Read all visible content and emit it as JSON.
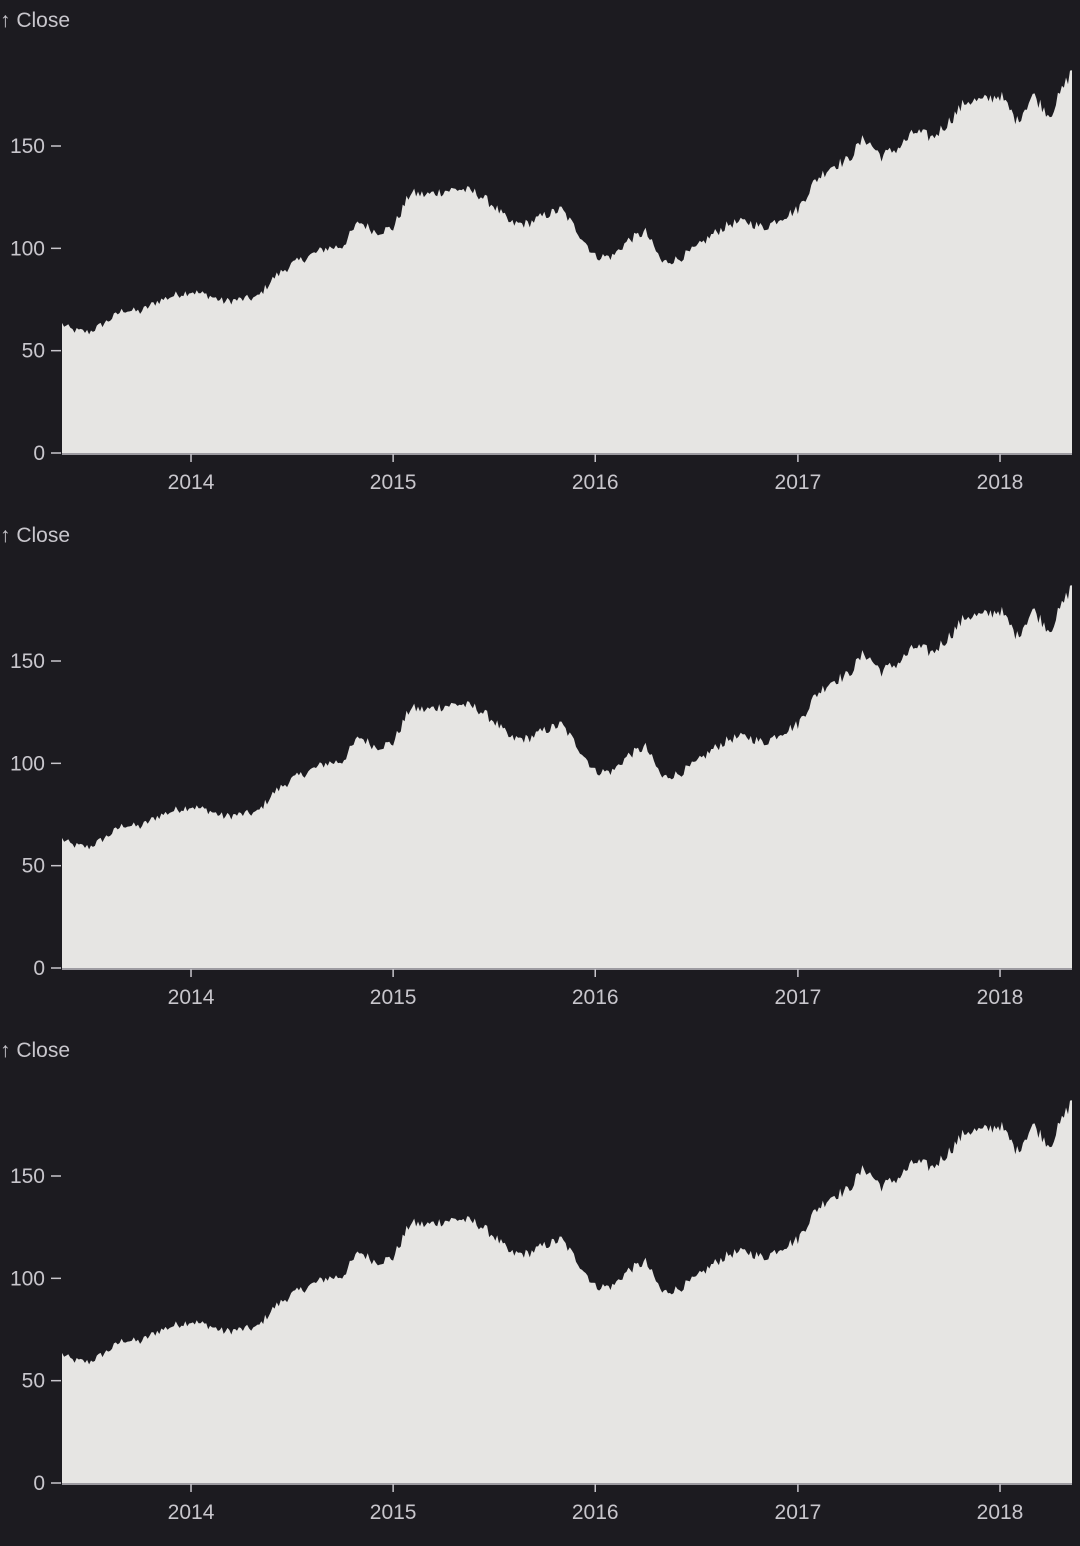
{
  "colors": {
    "background": "#1c1b20",
    "area_fill": "#e6e5e3",
    "axis": "#c8c6cc"
  },
  "chart_data": [
    {
      "type": "area",
      "ylabel": "↑ Close",
      "xlabel": "",
      "ylim": [
        0,
        193
      ],
      "xlim": [
        "2013-05-13",
        "2018-05-11"
      ],
      "y_ticks": [
        0,
        50,
        100,
        150
      ],
      "x_ticks": [
        "2014",
        "2015",
        "2016",
        "2017",
        "2018"
      ],
      "series": [
        {
          "x": [
            "2013-05-13",
            "2013-06-01",
            "2013-07-01",
            "2013-08-01",
            "2013-09-01",
            "2013-10-01",
            "2013-11-01",
            "2013-12-01",
            "2014-01-01",
            "2014-02-01",
            "2014-03-01",
            "2014-04-01",
            "2014-05-01",
            "2014-06-01",
            "2014-07-01",
            "2014-08-01",
            "2014-09-01",
            "2014-10-01",
            "2014-11-01",
            "2014-12-01",
            "2015-01-01",
            "2015-02-01",
            "2015-03-01",
            "2015-04-01",
            "2015-05-01",
            "2015-06-01",
            "2015-07-01",
            "2015-08-01",
            "2015-09-01",
            "2015-10-01",
            "2015-11-01",
            "2015-12-01",
            "2016-01-01",
            "2016-02-01",
            "2016-03-01",
            "2016-04-01",
            "2016-05-01",
            "2016-06-01",
            "2016-07-01",
            "2016-08-01",
            "2016-09-01",
            "2016-10-01",
            "2016-11-01",
            "2016-12-01",
            "2017-01-01",
            "2017-02-01",
            "2017-03-01",
            "2017-04-01",
            "2017-05-01",
            "2017-06-01",
            "2017-07-01",
            "2017-08-01",
            "2017-09-01",
            "2017-10-01",
            "2017-11-01",
            "2017-12-01",
            "2018-01-01",
            "2018-02-01",
            "2018-03-01",
            "2018-04-01",
            "2018-05-11"
          ],
          "values": [
            63,
            60,
            59,
            64,
            70,
            69,
            74,
            77,
            79,
            77,
            74,
            75,
            76,
            86,
            92,
            96,
            100,
            101,
            113,
            108,
            110,
            127,
            126,
            128,
            129,
            127,
            121,
            112,
            112,
            116,
            119,
            108,
            96,
            96,
            104,
            108,
            93,
            95,
            100,
            107,
            112,
            113,
            110,
            115,
            119,
            133,
            140,
            143,
            154,
            145,
            149,
            157,
            154,
            162,
            172,
            172,
            175,
            162,
            175,
            165,
            187
          ]
        }
      ]
    },
    {
      "type": "area",
      "ylabel": "↑ Close",
      "xlabel": "",
      "ylim": [
        0,
        193
      ],
      "xlim": [
        "2013-05-13",
        "2018-05-11"
      ],
      "y_ticks": [
        0,
        50,
        100,
        150
      ],
      "x_ticks": [
        "2014",
        "2015",
        "2016",
        "2017",
        "2018"
      ],
      "series": [
        {
          "x": [
            "2013-05-13",
            "2013-06-01",
            "2013-07-01",
            "2013-08-01",
            "2013-09-01",
            "2013-10-01",
            "2013-11-01",
            "2013-12-01",
            "2014-01-01",
            "2014-02-01",
            "2014-03-01",
            "2014-04-01",
            "2014-05-01",
            "2014-06-01",
            "2014-07-01",
            "2014-08-01",
            "2014-09-01",
            "2014-10-01",
            "2014-11-01",
            "2014-12-01",
            "2015-01-01",
            "2015-02-01",
            "2015-03-01",
            "2015-04-01",
            "2015-05-01",
            "2015-06-01",
            "2015-07-01",
            "2015-08-01",
            "2015-09-01",
            "2015-10-01",
            "2015-11-01",
            "2015-12-01",
            "2016-01-01",
            "2016-02-01",
            "2016-03-01",
            "2016-04-01",
            "2016-05-01",
            "2016-06-01",
            "2016-07-01",
            "2016-08-01",
            "2016-09-01",
            "2016-10-01",
            "2016-11-01",
            "2016-12-01",
            "2017-01-01",
            "2017-02-01",
            "2017-03-01",
            "2017-04-01",
            "2017-05-01",
            "2017-06-01",
            "2017-07-01",
            "2017-08-01",
            "2017-09-01",
            "2017-10-01",
            "2017-11-01",
            "2017-12-01",
            "2018-01-01",
            "2018-02-01",
            "2018-03-01",
            "2018-04-01",
            "2018-05-11"
          ],
          "values": [
            63,
            60,
            59,
            64,
            70,
            69,
            74,
            77,
            79,
            77,
            74,
            75,
            76,
            86,
            92,
            96,
            100,
            101,
            113,
            108,
            110,
            127,
            126,
            128,
            129,
            127,
            121,
            112,
            112,
            116,
            119,
            108,
            96,
            96,
            104,
            108,
            93,
            95,
            100,
            107,
            112,
            113,
            110,
            115,
            119,
            133,
            140,
            143,
            154,
            145,
            149,
            157,
            154,
            162,
            172,
            172,
            175,
            162,
            175,
            165,
            187
          ]
        }
      ]
    },
    {
      "type": "area",
      "ylabel": "↑ Close",
      "xlabel": "",
      "ylim": [
        0,
        193
      ],
      "xlim": [
        "2013-05-13",
        "2018-05-11"
      ],
      "y_ticks": [
        0,
        50,
        100,
        150
      ],
      "x_ticks": [
        "2014",
        "2015",
        "2016",
        "2017",
        "2018"
      ],
      "series": [
        {
          "x": [
            "2013-05-13",
            "2013-06-01",
            "2013-07-01",
            "2013-08-01",
            "2013-09-01",
            "2013-10-01",
            "2013-11-01",
            "2013-12-01",
            "2014-01-01",
            "2014-02-01",
            "2014-03-01",
            "2014-04-01",
            "2014-05-01",
            "2014-06-01",
            "2014-07-01",
            "2014-08-01",
            "2014-09-01",
            "2014-10-01",
            "2014-11-01",
            "2014-12-01",
            "2015-01-01",
            "2015-02-01",
            "2015-03-01",
            "2015-04-01",
            "2015-05-01",
            "2015-06-01",
            "2015-07-01",
            "2015-08-01",
            "2015-09-01",
            "2015-10-01",
            "2015-11-01",
            "2015-12-01",
            "2016-01-01",
            "2016-02-01",
            "2016-03-01",
            "2016-04-01",
            "2016-05-01",
            "2016-06-01",
            "2016-07-01",
            "2016-08-01",
            "2016-09-01",
            "2016-10-01",
            "2016-11-01",
            "2016-12-01",
            "2017-01-01",
            "2017-02-01",
            "2017-03-01",
            "2017-04-01",
            "2017-05-01",
            "2017-06-01",
            "2017-07-01",
            "2017-08-01",
            "2017-09-01",
            "2017-10-01",
            "2017-11-01",
            "2017-12-01",
            "2018-01-01",
            "2018-02-01",
            "2018-03-01",
            "2018-04-01",
            "2018-05-11"
          ],
          "values": [
            63,
            60,
            59,
            64,
            70,
            69,
            74,
            77,
            79,
            77,
            74,
            75,
            76,
            86,
            92,
            96,
            100,
            101,
            113,
            108,
            110,
            127,
            126,
            128,
            129,
            127,
            121,
            112,
            112,
            116,
            119,
            108,
            96,
            96,
            104,
            108,
            93,
            95,
            100,
            107,
            112,
            113,
            110,
            115,
            119,
            133,
            140,
            143,
            154,
            145,
            149,
            157,
            154,
            162,
            172,
            172,
            175,
            162,
            175,
            165,
            187
          ]
        }
      ]
    }
  ]
}
